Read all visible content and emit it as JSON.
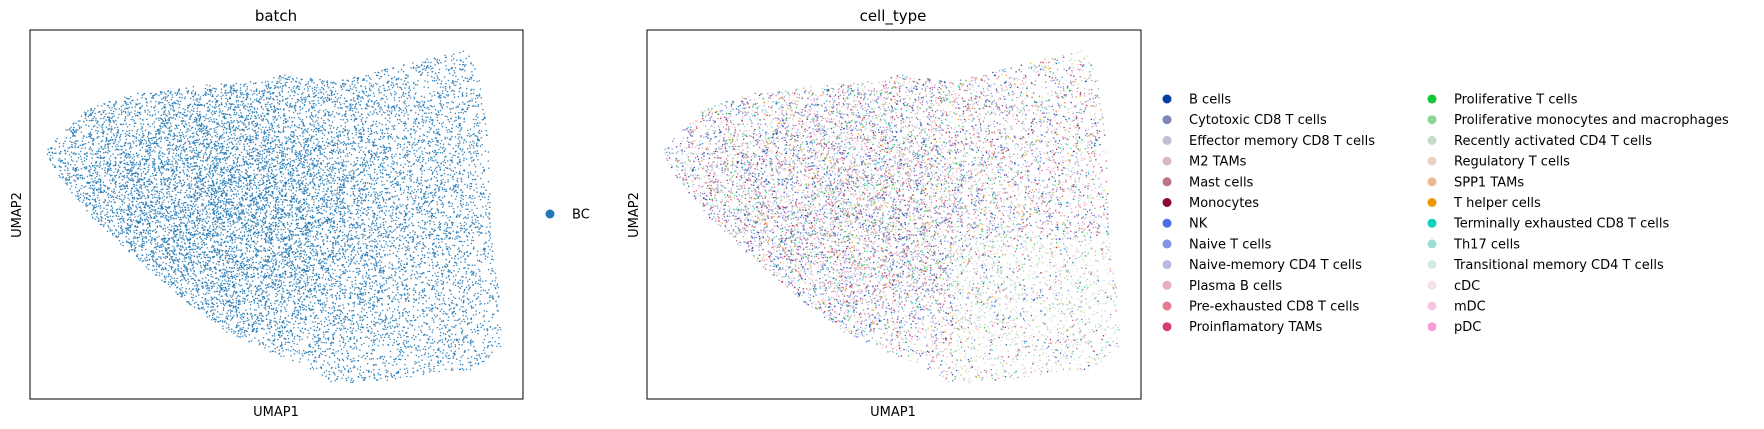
{
  "chart_data": [
    {
      "type": "scatter",
      "title": "batch",
      "xlabel": "UMAP1",
      "ylabel": "UMAP2",
      "grid": false,
      "axis_ticks": false,
      "legend_placement": "right",
      "point_count_estimate": 14000,
      "series": [
        {
          "name": "BC",
          "color": "#1f77b4"
        }
      ]
    },
    {
      "type": "scatter",
      "title": "cell_type",
      "xlabel": "UMAP1",
      "ylabel": "UMAP2",
      "grid": false,
      "axis_ticks": false,
      "legend_placement": "right",
      "legend_columns": 2,
      "point_count_estimate": 14000,
      "series": [
        {
          "name": "B cells",
          "color": "#023fa5"
        },
        {
          "name": "Cytotoxic CD8 T cells",
          "color": "#7d87b9"
        },
        {
          "name": "Effector memory CD8 T cells",
          "color": "#bec1d4"
        },
        {
          "name": "M2 TAMs",
          "color": "#d6bcc0"
        },
        {
          "name": "Mast cells",
          "color": "#bb7784"
        },
        {
          "name": "Monocytes",
          "color": "#8e063b"
        },
        {
          "name": "NK",
          "color": "#4a6fe3"
        },
        {
          "name": "Naive T cells",
          "color": "#8595e1"
        },
        {
          "name": "Naive-memory CD4 T cells",
          "color": "#b5bbe3"
        },
        {
          "name": "Plasma B cells",
          "color": "#e6afb9"
        },
        {
          "name": "Pre-exhausted CD8 T cells",
          "color": "#e07b91"
        },
        {
          "name": "Proinflamatory TAMs",
          "color": "#d33f6a"
        },
        {
          "name": "Proliferative T cells",
          "color": "#11c638"
        },
        {
          "name": "Proliferative monocytes and macrophages",
          "color": "#8dd593"
        },
        {
          "name": "Recently activated CD4 T cells",
          "color": "#c6dec7"
        },
        {
          "name": "Regulatory T cells",
          "color": "#ead3c6"
        },
        {
          "name": "SPP1 TAMs",
          "color": "#f0b98d"
        },
        {
          "name": "T helper cells",
          "color": "#ef9708"
        },
        {
          "name": "Terminally exhausted CD8 T cells",
          "color": "#0fcfc0"
        },
        {
          "name": "Th17 cells",
          "color": "#9cded6"
        },
        {
          "name": "Transitional memory CD4 T cells",
          "color": "#d5eae7"
        },
        {
          "name": "cDC",
          "color": "#f3e1eb"
        },
        {
          "name": "mDC",
          "color": "#f6c4e1"
        },
        {
          "name": "pDC",
          "color": "#f79cd4"
        }
      ]
    }
  ]
}
